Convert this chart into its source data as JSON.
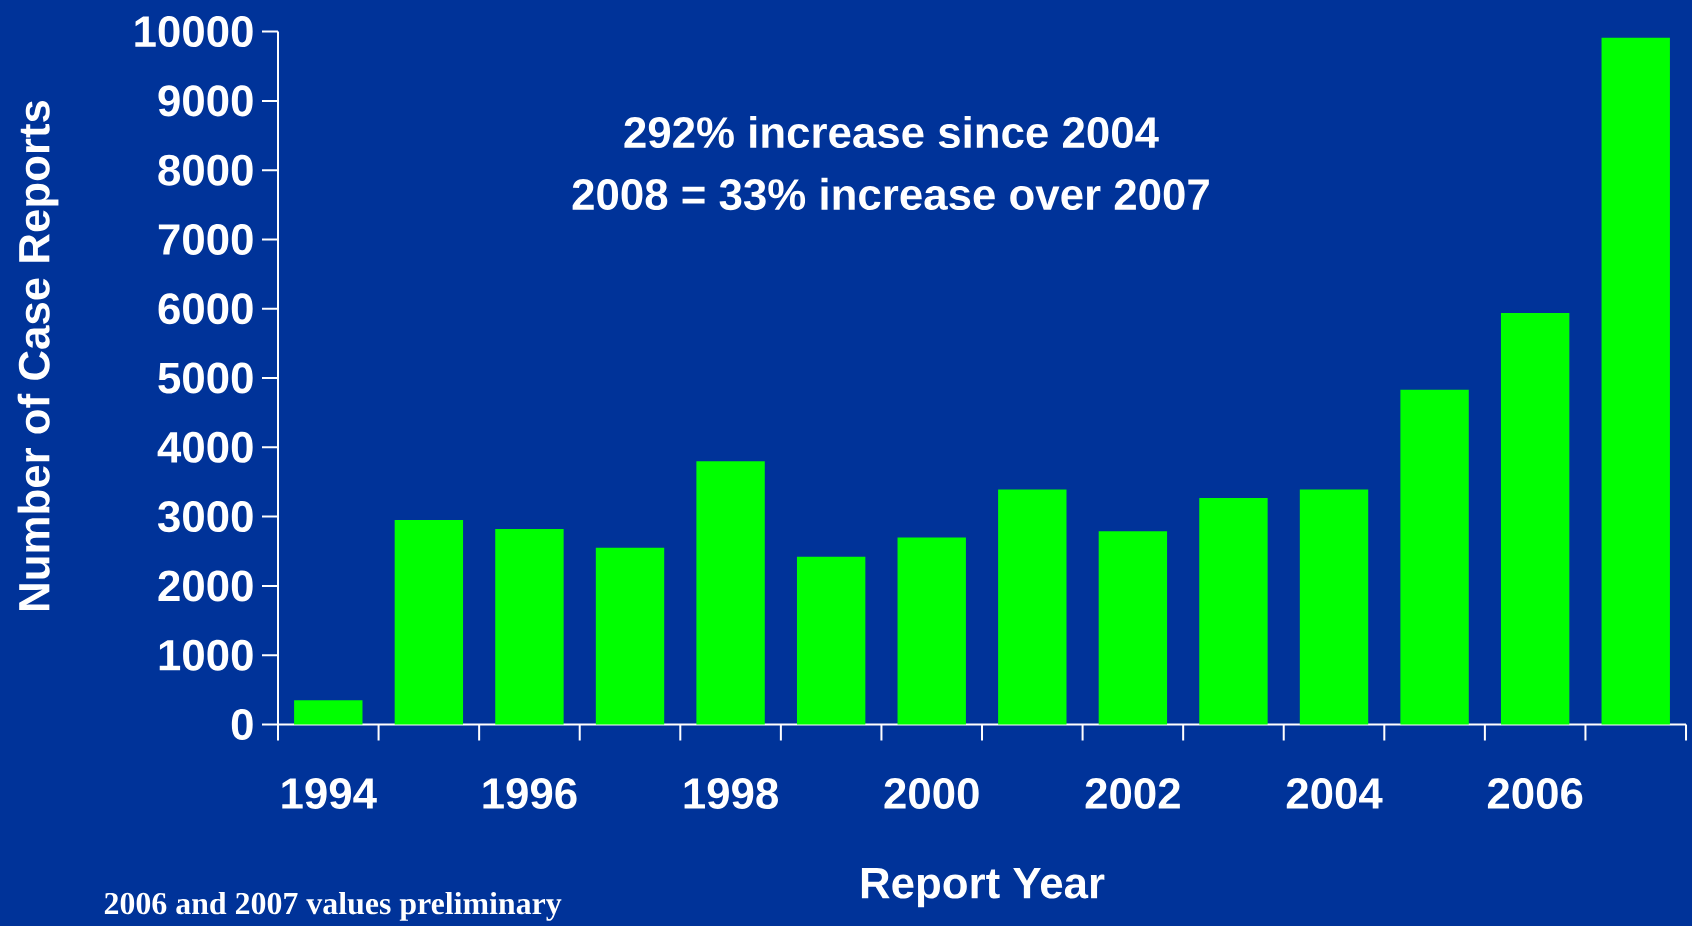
{
  "chart_data": {
    "type": "bar",
    "xlabel": "Report Year",
    "ylabel": "Number of Case Reports",
    "categories": [
      "1994",
      null,
      "1996",
      null,
      "1998",
      null,
      "2000",
      null,
      "2002",
      null,
      "2004",
      null,
      "2006",
      null
    ],
    "values": [
      350,
      2950,
      2820,
      2550,
      3800,
      2420,
      2700,
      3390,
      2790,
      3270,
      3390,
      4830,
      5940,
      9910
    ],
    "color": "#00ff00",
    "ylim": [
      0,
      10000
    ],
    "yticks": [
      0,
      1000,
      2000,
      3000,
      4000,
      5000,
      6000,
      7000,
      8000,
      9000,
      10000
    ],
    "annotations": [
      "292% increase since 2004",
      "2008 = 33% increase over 2007",
      "2006 and 2007 values preliminary"
    ]
  }
}
